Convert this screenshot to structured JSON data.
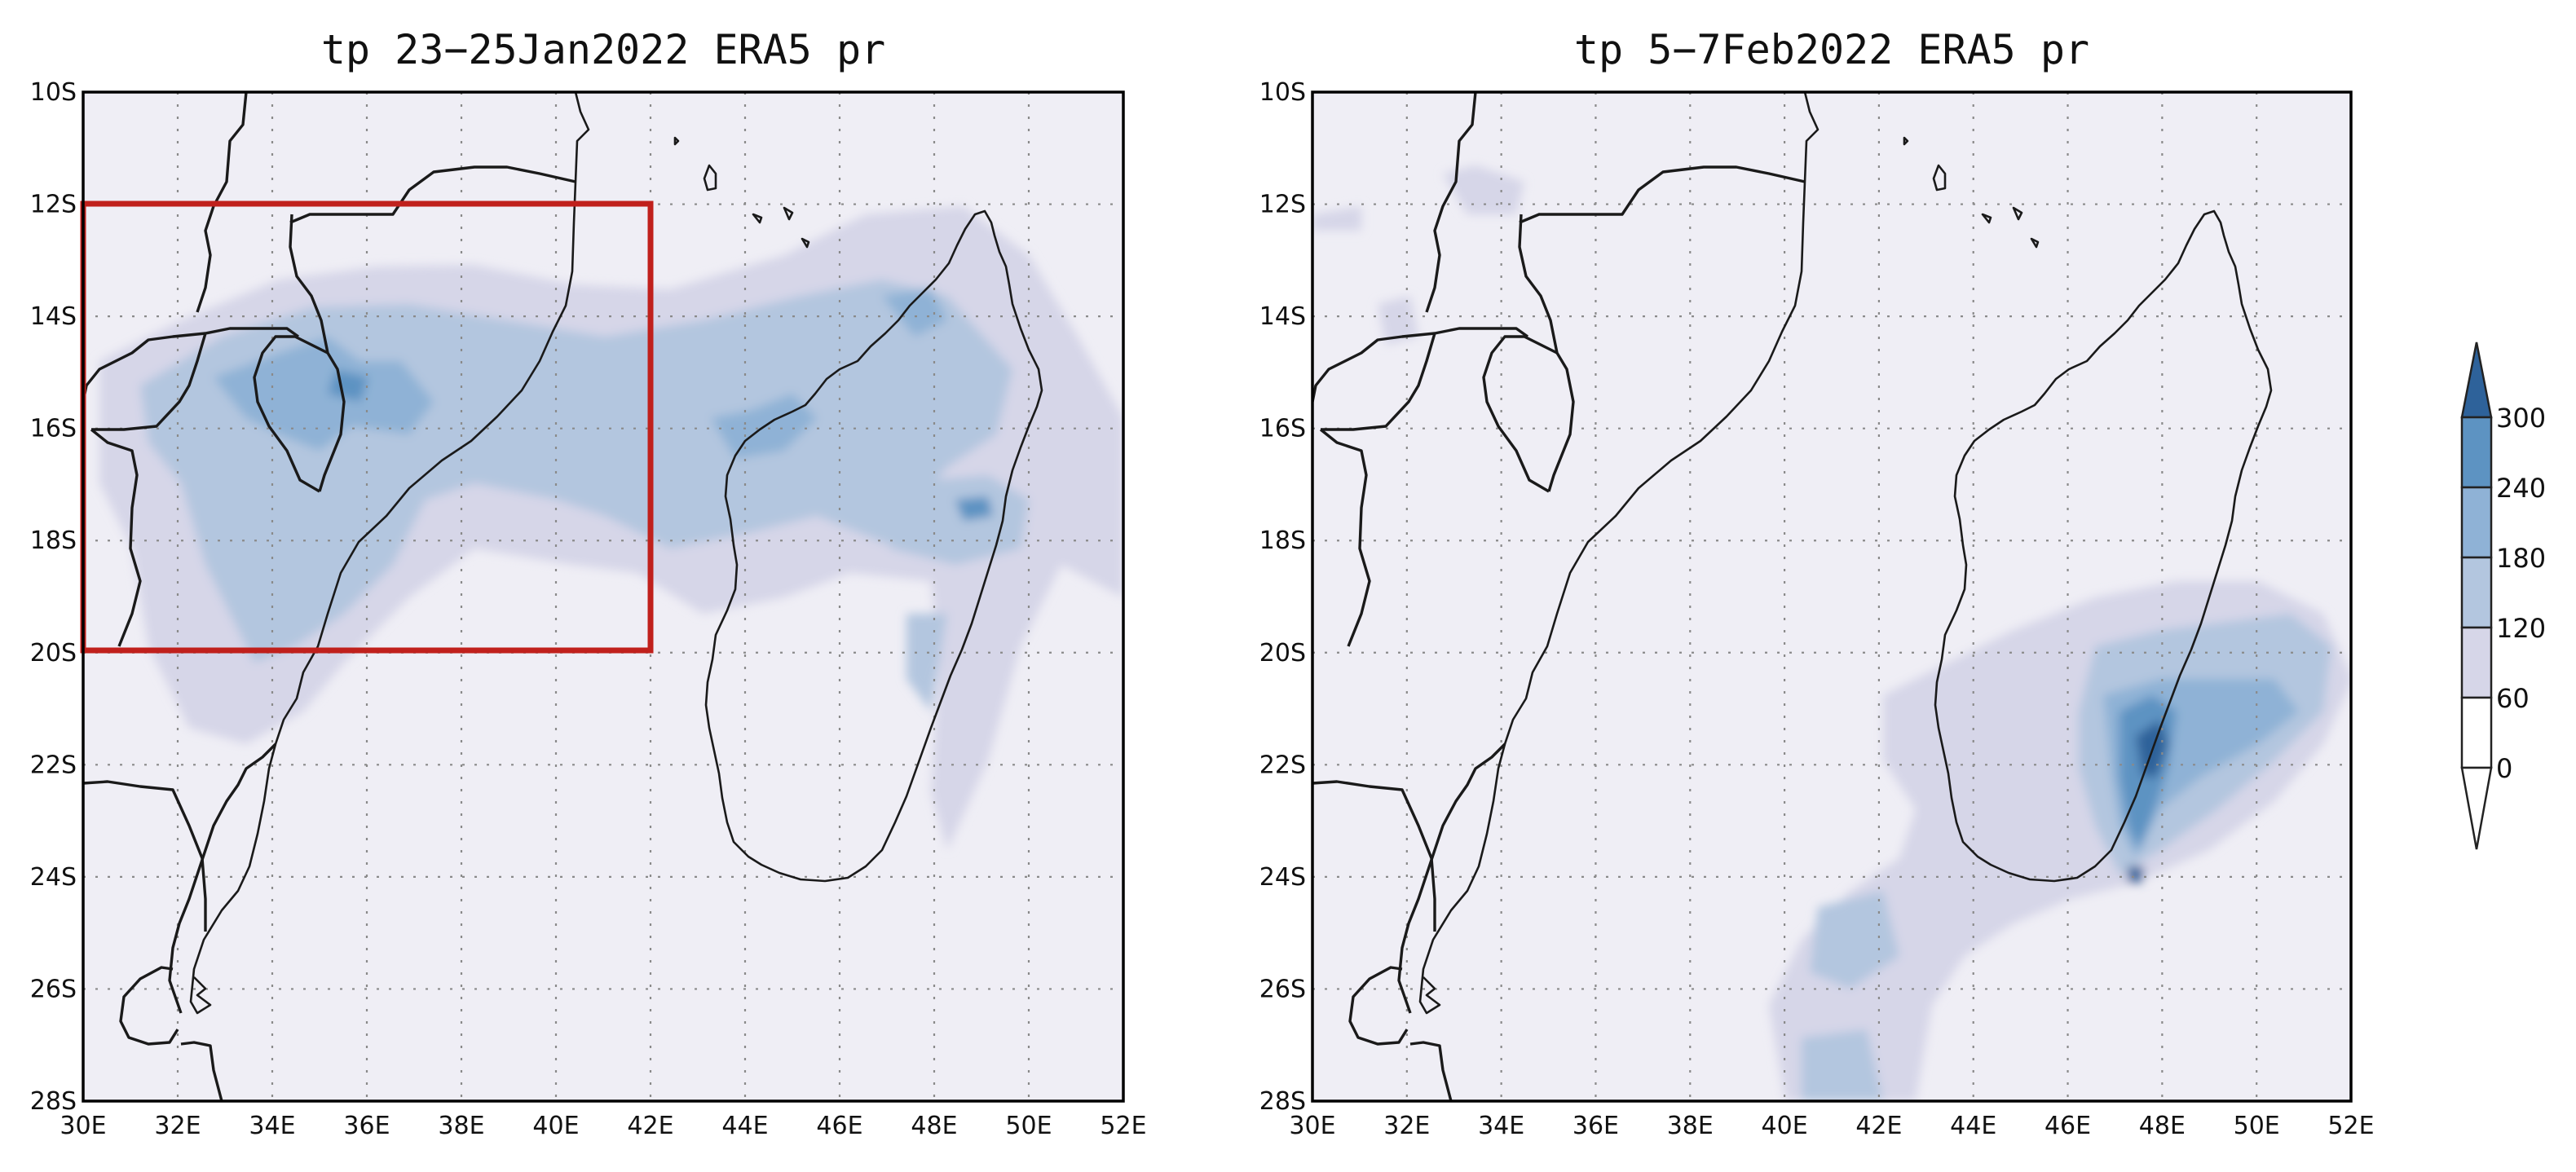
{
  "colors": {
    "background": "#efeef5",
    "level_0": "#ffffff",
    "level_60": "#d6d6e8",
    "level_120": "#b3c6df",
    "level_180": "#8fb2d6",
    "level_240": "#5d93c2",
    "level_300": "#2e629a",
    "highlight_box": "#c0201c"
  },
  "chart_data": [
    {
      "type": "map",
      "title": "tp 23−25Jan2022 ERA5 pr",
      "xlim": [
        30,
        52
      ],
      "ylim": [
        -28,
        -10
      ],
      "x_ticks": [
        "30E",
        "32E",
        "34E",
        "36E",
        "38E",
        "40E",
        "42E",
        "44E",
        "46E",
        "48E",
        "50E",
        "52E"
      ],
      "y_ticks": [
        "10S",
        "12S",
        "14S",
        "16S",
        "18S",
        "20S",
        "22S",
        "24S",
        "26S",
        "28S"
      ],
      "grid": true,
      "highlight_box": {
        "lon": [
          30,
          42
        ],
        "lat": [
          -20,
          -12
        ],
        "color": "#c0201c"
      }
    },
    {
      "type": "map",
      "title": "tp 5−7Feb2022 ERA5 pr",
      "xlim": [
        30,
        52
      ],
      "ylim": [
        -28,
        -10
      ],
      "x_ticks": [
        "30E",
        "32E",
        "34E",
        "36E",
        "38E",
        "40E",
        "42E",
        "44E",
        "46E",
        "48E",
        "50E",
        "52E"
      ],
      "y_ticks": [
        "10S",
        "12S",
        "14S",
        "16S",
        "18S",
        "20S",
        "22S",
        "24S",
        "26S",
        "28S"
      ],
      "grid": true
    }
  ],
  "colorbar": {
    "labels": [
      "300",
      "240",
      "180",
      "120",
      "60",
      "0"
    ],
    "levels": [
      0,
      60,
      120,
      180,
      240,
      300
    ]
  }
}
